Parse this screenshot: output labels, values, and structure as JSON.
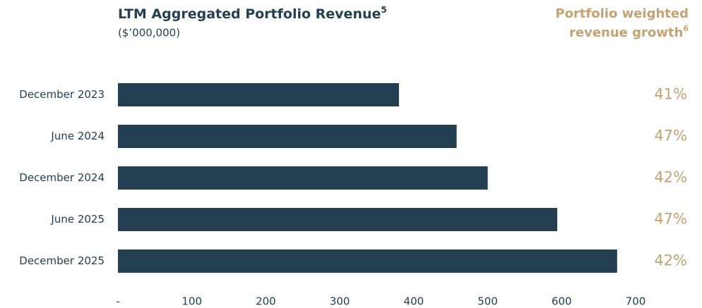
{
  "chart_data": {
    "type": "barh",
    "title": "LTM Aggregated Portfolio Revenue",
    "title_note": "5",
    "subtitle": "($’000,000)",
    "categories": [
      "December 2023",
      "June 2024",
      "December 2024",
      "June 2025",
      "December 2025"
    ],
    "values": [
      380,
      458,
      500,
      594,
      675
    ],
    "color": "#243f52",
    "xlim": [
      0,
      700
    ],
    "xticks": [
      {
        "value": 0,
        "label": "-"
      },
      100,
      200,
      300,
      400,
      500,
      600,
      700
    ],
    "grid": false,
    "growth": {
      "title_lines": [
        "Portfolio weighted",
        "revenue growth"
      ],
      "title_note": "6",
      "values": [
        41,
        47,
        42,
        47,
        42
      ],
      "value_labels": [
        "41%",
        "47%",
        "42%",
        "47%",
        "42%"
      ],
      "color": "#c4a272"
    }
  }
}
